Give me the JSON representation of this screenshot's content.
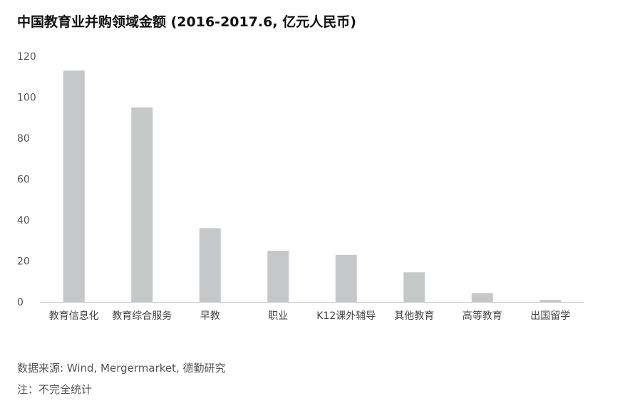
{
  "chart_data": {
    "type": "bar",
    "title": "中国教育业并购领域金额 (2016-2017.6, 亿元人民币)",
    "categories": [
      "教育信息化",
      "教育综合服务",
      "早教",
      "职业",
      "K12课外辅导",
      "其他教育",
      "高等教育",
      "出国留学"
    ],
    "values": [
      113,
      95,
      36,
      25,
      23,
      14.5,
      4.3,
      1
    ],
    "ylim": [
      0,
      120
    ],
    "yticks": [
      0,
      20,
      40,
      60,
      80,
      100,
      120
    ],
    "xlabel": "",
    "ylabel": "",
    "grid": false,
    "colors": {
      "bar": "#c6c7c9",
      "axis": "#c8c8c8"
    }
  },
  "footer": {
    "source": "数据来源: Wind, Mergermarket, 德勤研究",
    "note": "注：不完全统计"
  }
}
